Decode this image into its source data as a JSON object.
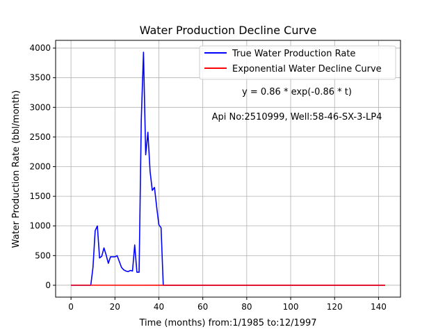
{
  "chart_data": {
    "type": "line",
    "title": "Water Production Decline Curve",
    "xlabel": "Time (months) from:1/1985 to:12/1997",
    "ylabel": "Water Production Rate (bbl/month)",
    "xlim": [
      -7,
      150
    ],
    "ylim": [
      -200,
      4130
    ],
    "xticks": [
      0,
      20,
      40,
      60,
      80,
      100,
      120,
      140
    ],
    "yticks": [
      0,
      500,
      1000,
      1500,
      2000,
      2500,
      3000,
      3500,
      4000
    ],
    "grid": true,
    "legend_position": "upper-right",
    "annotations": [
      "y = 0.86 * exp(-0.86 * t)",
      "Api No:2510999, Well:58-46-SX-3-LP4"
    ],
    "series": [
      {
        "name": "True Water Production Rate",
        "color": "#0000ff",
        "x": [
          0,
          1,
          2,
          3,
          4,
          5,
          6,
          7,
          8,
          9,
          10,
          11,
          12,
          13,
          14,
          15,
          16,
          17,
          18,
          19,
          20,
          21,
          22,
          23,
          24,
          25,
          26,
          27,
          28,
          29,
          30,
          31,
          32,
          33,
          34,
          35,
          36,
          37,
          38,
          39,
          40,
          41,
          42,
          50,
          60,
          70,
          80,
          90,
          100,
          110,
          120,
          130,
          143
        ],
        "y": [
          0,
          0,
          0,
          0,
          0,
          0,
          0,
          0,
          0,
          0,
          300,
          920,
          1000,
          460,
          490,
          630,
          510,
          370,
          480,
          480,
          480,
          500,
          400,
          300,
          260,
          240,
          230,
          250,
          240,
          680,
          220,
          220,
          2800,
          3930,
          2200,
          2580,
          1920,
          1600,
          1650,
          1320,
          1020,
          970,
          0,
          0,
          0,
          0,
          0,
          0,
          0,
          0,
          0,
          0,
          0
        ]
      },
      {
        "name": "Exponential Water Decline Curve",
        "color": "#ff0000",
        "x": [
          0,
          143
        ],
        "y": [
          0.86,
          0
        ]
      }
    ]
  }
}
